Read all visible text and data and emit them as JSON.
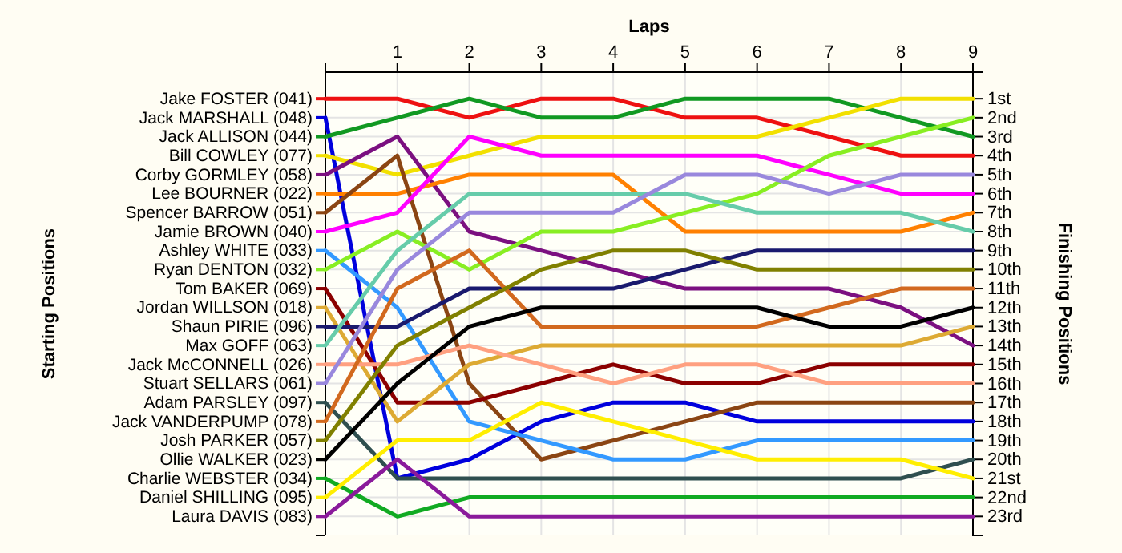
{
  "chart_data": {
    "type": "line",
    "xlabel": "Laps",
    "ylabel": "Finishing Positions",
    "annotations": [
      "Starting Positions"
    ],
    "x": [
      0,
      1,
      2,
      3,
      4,
      5,
      6,
      7,
      8,
      9
    ],
    "xlim": [
      0,
      9
    ],
    "xticks": [
      {
        "value": 0,
        "label": null
      },
      1,
      2,
      3,
      4,
      5,
      6,
      7,
      8,
      9
    ],
    "ylim": [
      24,
      -0.4
    ],
    "yticks": [
      {
        "value": 1,
        "label": "1st"
      },
      {
        "value": 2,
        "label": "2nd"
      },
      {
        "value": 3,
        "label": "3rd"
      },
      {
        "value": 4,
        "label": "4th"
      },
      {
        "value": 5,
        "label": "5th"
      },
      {
        "value": 6,
        "label": "6th"
      },
      {
        "value": 7,
        "label": "7th"
      },
      {
        "value": 8,
        "label": "8th"
      },
      {
        "value": 9,
        "label": "9th"
      },
      {
        "value": 10,
        "label": "10th"
      },
      {
        "value": 11,
        "label": "11th"
      },
      {
        "value": 12,
        "label": "12th"
      },
      {
        "value": 13,
        "label": "13th"
      },
      {
        "value": 14,
        "label": "14th"
      },
      {
        "value": 15,
        "label": "15th"
      },
      {
        "value": 16,
        "label": "16th"
      },
      {
        "value": 17,
        "label": "17th"
      },
      {
        "value": 18,
        "label": "18th"
      },
      {
        "value": 19,
        "label": "19th"
      },
      {
        "value": 20,
        "label": "20th"
      },
      {
        "value": 21,
        "label": "21st"
      },
      {
        "value": 22,
        "label": "22nd"
      },
      {
        "value": 23,
        "label": "23rd"
      }
    ],
    "grid": true,
    "legend": "left",
    "line_style": "solid",
    "series": [
      {
        "name": "Jake FOSTER (041)",
        "color": "#ee1111",
        "values": [
          1,
          1,
          2,
          1,
          1,
          2,
          2,
          3,
          4,
          4
        ]
      },
      {
        "name": "Jack MARSHALL (048)",
        "color": "#0000dd",
        "values": [
          2,
          21,
          20,
          18,
          17,
          17,
          18,
          18,
          18,
          18
        ]
      },
      {
        "name": "Jack ALLISON (044)",
        "color": "#119922",
        "values": [
          3,
          2,
          1,
          2,
          2,
          1,
          1,
          1,
          2,
          3
        ]
      },
      {
        "name": "Bill COWLEY (077)",
        "color": "#f2e000",
        "values": [
          4,
          5,
          4,
          3,
          3,
          3,
          3,
          2,
          1,
          1
        ]
      },
      {
        "name": "Corby GORMLEY (058)",
        "color": "#7b1080",
        "values": [
          5,
          3,
          8,
          9,
          10,
          11,
          11,
          11,
          12,
          14
        ]
      },
      {
        "name": "Lee BOURNER (022)",
        "color": "#ff8000",
        "values": [
          6,
          6,
          5,
          5,
          5,
          8,
          8,
          8,
          8,
          7
        ]
      },
      {
        "name": "Spencer BARROW (051)",
        "color": "#8b4513",
        "values": [
          7,
          4,
          16,
          20,
          19,
          18,
          17,
          17,
          17,
          17
        ]
      },
      {
        "name": "Jamie BROWN (040)",
        "color": "#ff00ff",
        "values": [
          8,
          7,
          3,
          4,
          4,
          4,
          4,
          5,
          6,
          6
        ]
      },
      {
        "name": "Ashley WHITE (033)",
        "color": "#3399ff",
        "values": [
          9,
          12,
          18,
          19,
          20,
          20,
          19,
          19,
          19,
          19
        ]
      },
      {
        "name": "Ryan DENTON (032)",
        "color": "#88ee22",
        "values": [
          10,
          8,
          10,
          8,
          8,
          7,
          6,
          4,
          3,
          2
        ]
      },
      {
        "name": "Tom BAKER (069)",
        "color": "#8b0000",
        "values": [
          11,
          17,
          17,
          16,
          15,
          16,
          16,
          15,
          15,
          15
        ]
      },
      {
        "name": "Jordan WILLSON (018)",
        "color": "#ddaa33",
        "values": [
          12,
          18,
          15,
          14,
          14,
          14,
          14,
          14,
          14,
          13
        ]
      },
      {
        "name": "Shaun PIRIE (096)",
        "color": "#1a1a6e",
        "values": [
          13,
          13,
          11,
          11,
          11,
          10,
          9,
          9,
          9,
          9
        ]
      },
      {
        "name": "Max GOFF (063)",
        "color": "#66ccaa",
        "values": [
          14,
          9,
          6,
          6,
          6,
          6,
          7,
          7,
          7,
          8
        ]
      },
      {
        "name": "Jack McCONNELL (026)",
        "color": "#ffa080",
        "values": [
          15,
          15,
          14,
          15,
          16,
          15,
          15,
          16,
          16,
          16
        ]
      },
      {
        "name": "Stuart SELLARS (061)",
        "color": "#9988dd",
        "values": [
          16,
          10,
          7,
          7,
          7,
          5,
          5,
          6,
          5,
          5
        ]
      },
      {
        "name": "Adam PARSLEY (097)",
        "color": "#2f4f4f",
        "values": [
          17,
          21,
          21,
          21,
          21,
          21,
          21,
          21,
          21,
          20
        ]
      },
      {
        "name": "Jack VANDERPUMP (078)",
        "color": "#d2691e",
        "values": [
          18,
          11,
          9,
          13,
          13,
          13,
          13,
          12,
          11,
          11
        ]
      },
      {
        "name": "Josh PARKER (057)",
        "color": "#808000",
        "values": [
          19,
          14,
          12,
          10,
          9,
          9,
          10,
          10,
          10,
          10
        ]
      },
      {
        "name": "Ollie WALKER (023)",
        "color": "#000000",
        "values": [
          20,
          16,
          13,
          12,
          12,
          12,
          12,
          13,
          13,
          12
        ]
      },
      {
        "name": "Charlie WEBSTER (034)",
        "color": "#11aa22",
        "values": [
          21,
          23,
          22,
          22,
          22,
          22,
          22,
          22,
          22,
          22
        ]
      },
      {
        "name": "Daniel SHILLING (095)",
        "color": "#ffee00",
        "values": [
          22,
          19,
          19,
          17,
          18,
          19,
          20,
          20,
          20,
          21
        ]
      },
      {
        "name": "Laura DAVIS (083)",
        "color": "#8a1a9b",
        "values": [
          23,
          20,
          23,
          23,
          23,
          23,
          23,
          23,
          23,
          23
        ]
      }
    ]
  }
}
